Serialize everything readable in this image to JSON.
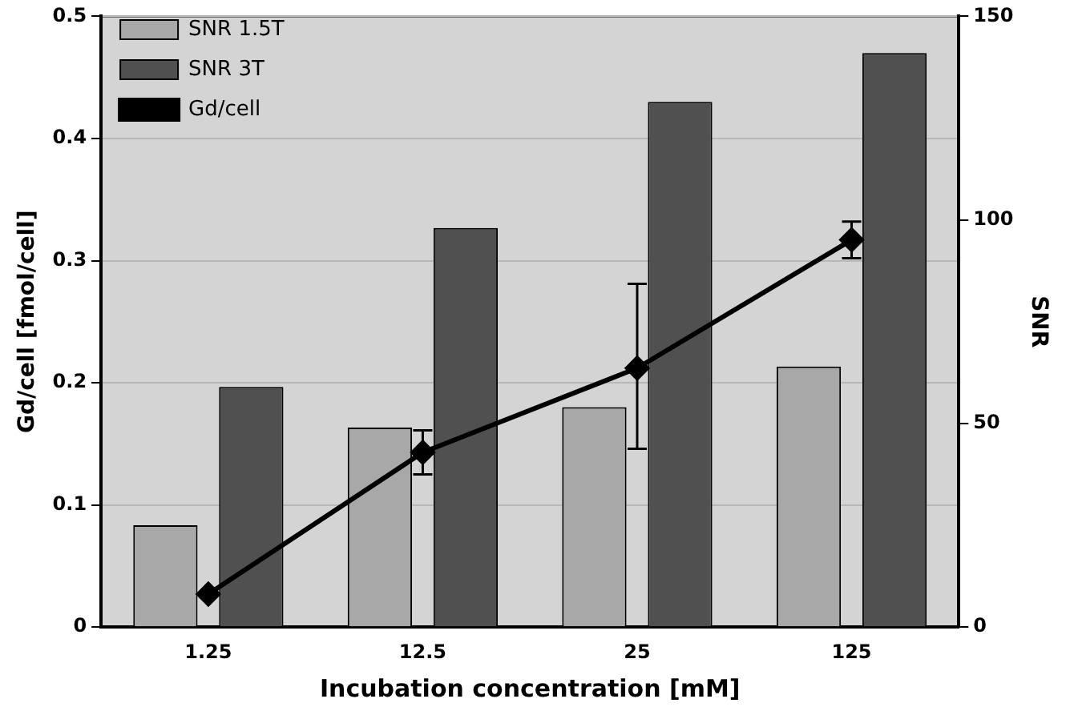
{
  "chart_data": {
    "type": "bar",
    "xlabel": "Incubation concentration [mM]",
    "ylabel": "Gd/cell [fmol/cell]",
    "y2label": "SNR",
    "categories": [
      "1.25",
      "12.5",
      "25",
      "125"
    ],
    "series": [
      {
        "name": "SNR 1.5T",
        "axis": "y2",
        "color": "#a8a8a8",
        "values": [
          25,
          49,
          54,
          64
        ]
      },
      {
        "name": "SNR 3T",
        "axis": "y2",
        "color": "#505050",
        "values": [
          59,
          98,
          129,
          141
        ]
      },
      {
        "name": "Gd/cell",
        "type": "line",
        "color": "#000000",
        "marker": "diamond",
        "values": [
          0.027,
          0.143,
          0.212,
          0.317
        ],
        "errors": [
          null,
          0.018,
          [
            0.146,
            0.281
          ],
          0.015
        ]
      }
    ],
    "ylim": [
      0,
      0.5
    ],
    "yticks": [
      0,
      0.1,
      0.2,
      0.3,
      0.4,
      0.5
    ],
    "y2lim": [
      0,
      150
    ],
    "y2ticks": [
      0,
      50,
      100,
      150
    ],
    "grid": "y",
    "legend": "top left"
  }
}
